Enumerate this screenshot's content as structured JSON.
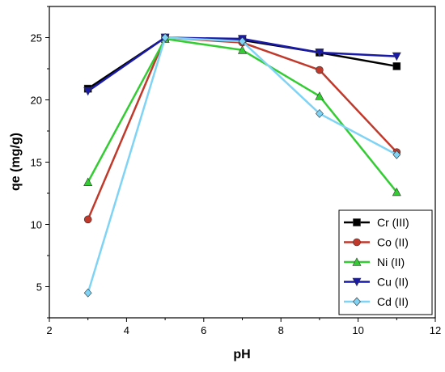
{
  "chart_data": {
    "type": "line",
    "title": "",
    "xlabel": "pH",
    "ylabel": "qe (mg/g)",
    "xlim": [
      2,
      12
    ],
    "ylim": [
      2.5,
      27.5
    ],
    "xticks": [
      "2",
      "4",
      "6",
      "8",
      "10",
      "12"
    ],
    "yticks": [
      "5",
      "10",
      "15",
      "20",
      "25"
    ],
    "grid": false,
    "legend_position": "bottom-right",
    "series": [
      {
        "name": "Cr (III)",
        "color": "#000000",
        "marker": "square",
        "x": [
          3,
          5,
          7,
          9,
          11
        ],
        "y": [
          20.9,
          25.0,
          24.8,
          23.8,
          22.7
        ]
      },
      {
        "name": "Co (II)",
        "color": "#c0392b",
        "marker": "circle",
        "x": [
          3,
          5,
          7,
          9,
          11
        ],
        "y": [
          10.4,
          25.0,
          24.6,
          22.4,
          15.8
        ]
      },
      {
        "name": "Ni (II)",
        "color": "#33cc33",
        "marker": "triangle-up",
        "x": [
          3,
          5,
          7,
          9,
          11
        ],
        "y": [
          13.4,
          24.9,
          24.0,
          20.3,
          12.6
        ]
      },
      {
        "name": "Cu (II)",
        "color": "#1a1aa8",
        "marker": "triangle-down",
        "x": [
          3,
          5,
          7,
          9,
          11
        ],
        "y": [
          20.7,
          25.0,
          24.9,
          23.8,
          23.5
        ]
      },
      {
        "name": "Cd (II)",
        "color": "#7fd3f5",
        "marker": "diamond",
        "x": [
          3,
          5,
          7,
          9,
          11
        ],
        "y": [
          4.5,
          25.0,
          24.7,
          18.9,
          15.6
        ]
      }
    ]
  }
}
